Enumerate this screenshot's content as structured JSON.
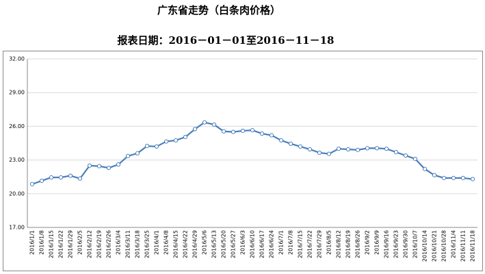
{
  "chart_data": {
    "type": "line",
    "title": "广东省走势（白条肉价格）",
    "subtitle": "报表日期：2016－01－01至2016－11－18",
    "categories": [
      "2016/1/1",
      "2016/1/8",
      "2016/1/15",
      "2016/1/22",
      "2016/1/29",
      "2016/2/5",
      "2016/2/12",
      "2016/2/19",
      "2016/2/26",
      "2016/3/4",
      "2016/3/11",
      "2016/3/18",
      "2016/3/25",
      "2016/4/1",
      "2016/4/8",
      "2016/4/15",
      "2016/4/22",
      "2016/4/29",
      "2016/5/6",
      "2016/5/13",
      "2016/5/20",
      "2016/5/27",
      "2016/6/3",
      "2016/6/10",
      "2016/6/17",
      "2016/6/24",
      "2016/7/1",
      "2016/7/8",
      "2016/7/15",
      "2016/7/22",
      "2016/7/29",
      "2016/8/5",
      "2016/8/12",
      "2016/8/19",
      "2016/8/26",
      "2016/9/2",
      "2016/9/9",
      "2016/9/16",
      "2016/9/23",
      "2016/9/30",
      "2016/10/7",
      "2016/10/14",
      "2016/10/21",
      "2016/10/28",
      "2016/11/4",
      "2016/11/11",
      "2016/11/18"
    ],
    "values": [
      20.85,
      21.15,
      21.45,
      21.45,
      21.6,
      21.35,
      22.5,
      22.45,
      22.3,
      22.6,
      23.35,
      23.6,
      24.25,
      24.2,
      24.65,
      24.75,
      25.05,
      25.75,
      26.35,
      26.15,
      25.55,
      25.5,
      25.6,
      25.65,
      25.35,
      25.2,
      24.75,
      24.45,
      24.2,
      23.95,
      23.65,
      23.55,
      24.0,
      23.95,
      23.9,
      24.05,
      24.05,
      24.0,
      23.7,
      23.4,
      23.1,
      22.2,
      21.65,
      21.4,
      21.4,
      21.4,
      21.3
    ],
    "color": "#4a7ebb",
    "ylim": [
      17,
      32
    ],
    "yticks": [
      {
        "value": 17,
        "label": "17.00"
      },
      {
        "value": 20,
        "label": "20.00"
      },
      {
        "value": 23,
        "label": "23.00"
      },
      {
        "value": 26,
        "label": "26.00"
      },
      {
        "value": 29,
        "label": "29.00"
      },
      {
        "value": 32,
        "label": "32.00"
      }
    ],
    "grid": true
  }
}
